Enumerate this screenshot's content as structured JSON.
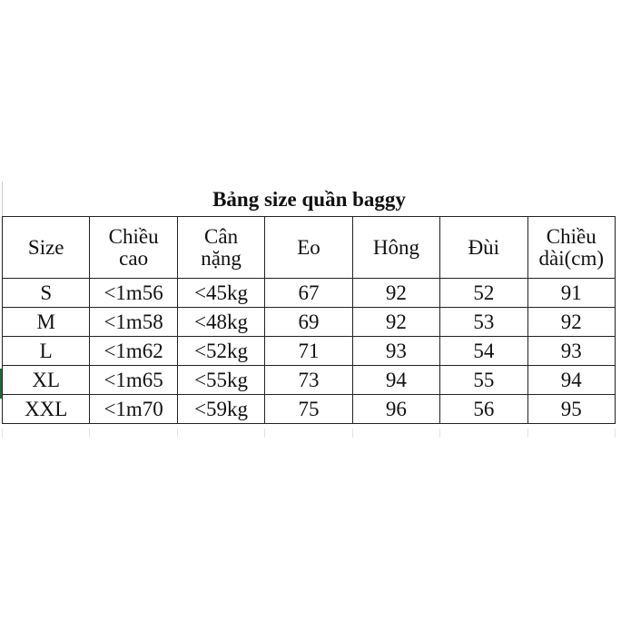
{
  "title": "Bảng size quần baggy",
  "headers": [
    [
      "Size"
    ],
    [
      "Chiều",
      "cao"
    ],
    [
      "Cân",
      "nặng"
    ],
    [
      "Eo"
    ],
    [
      "Hông"
    ],
    [
      "Đùi"
    ],
    [
      "Chiều",
      "dài(cm)"
    ]
  ],
  "rows": [
    [
      "S",
      "<1m56",
      "<45kg",
      "67",
      "92",
      "52",
      "91"
    ],
    [
      "M",
      "<1m58",
      "<48kg",
      "69",
      "92",
      "53",
      "92"
    ],
    [
      "L",
      "<1m62",
      "<52kg",
      "71",
      "93",
      "54",
      "93"
    ],
    [
      "XL",
      "<1m65",
      "<55kg",
      "73",
      "94",
      "55",
      "94"
    ],
    [
      "XXL",
      "<1m70",
      "<59kg",
      "75",
      "96",
      "56",
      "95"
    ]
  ]
}
